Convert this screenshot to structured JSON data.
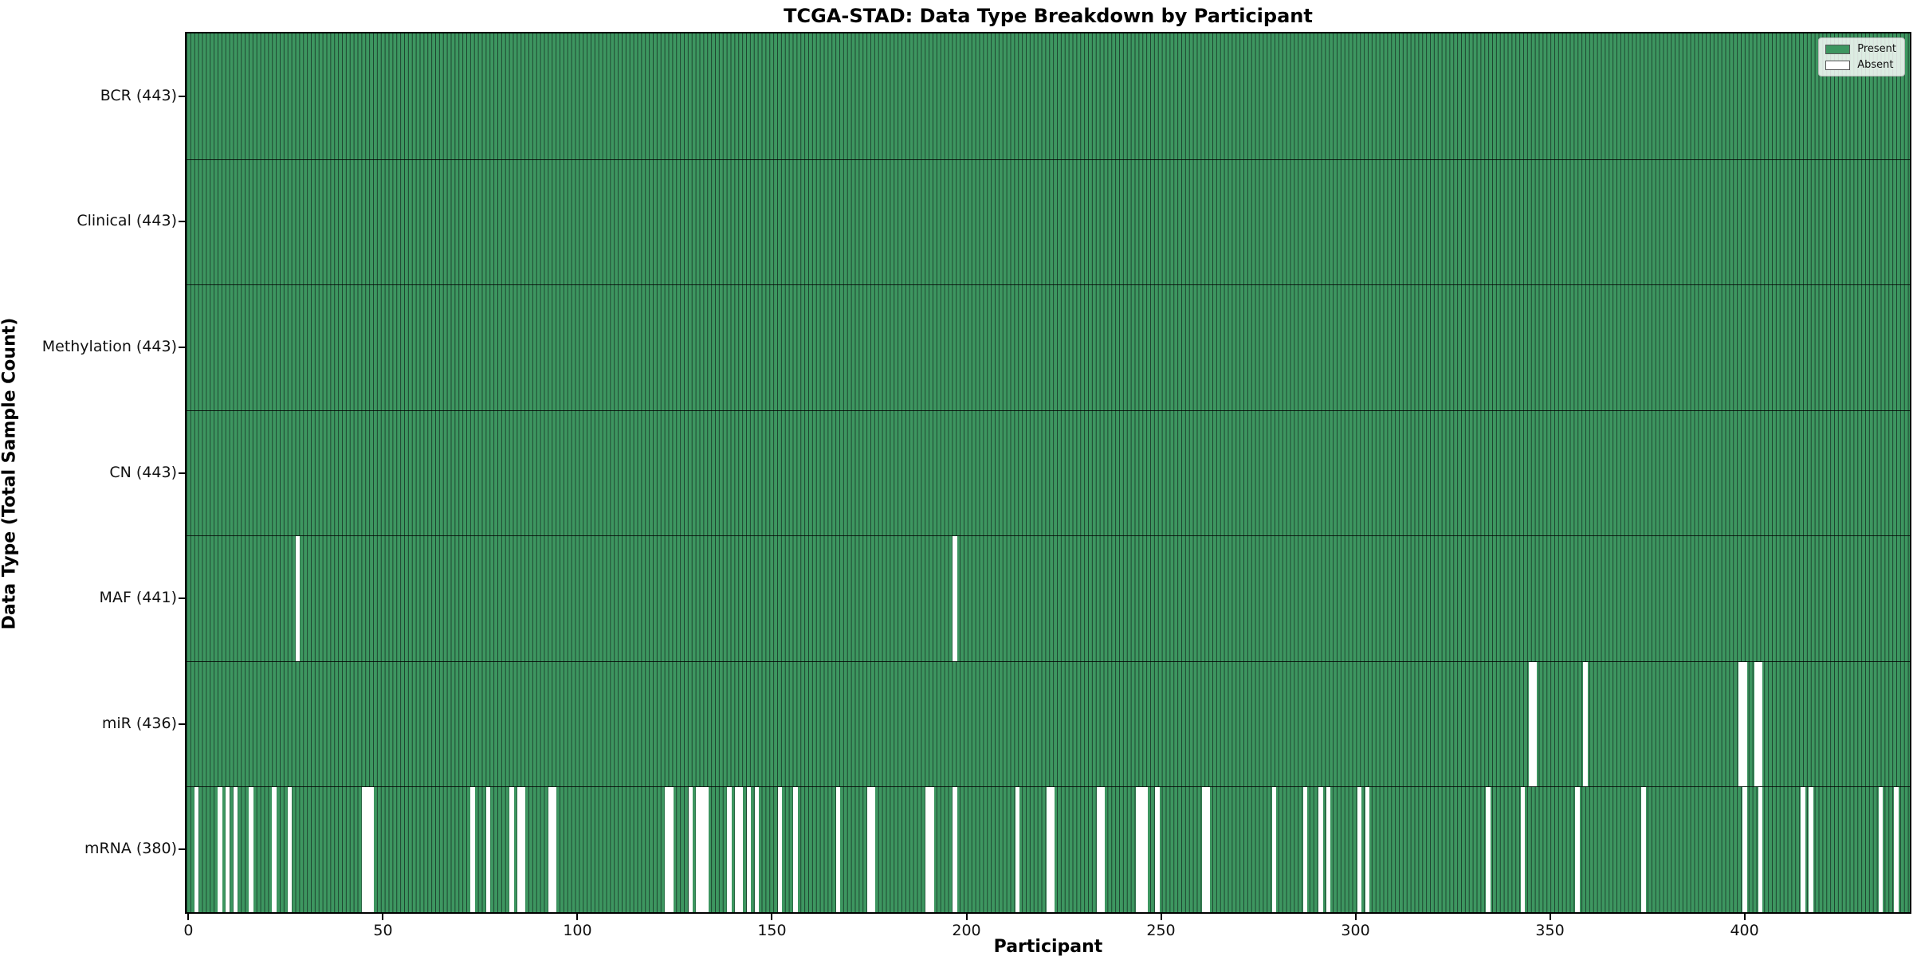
{
  "chart_data": {
    "type": "heatmap",
    "title": "TCGA-STAD: Data Type Breakdown by Participant",
    "xlabel": "Participant",
    "ylabel": "Data Type (Total Sample Count)",
    "n_participants": 443,
    "x_ticks": [
      0,
      50,
      100,
      150,
      200,
      250,
      300,
      350,
      400
    ],
    "grid": false,
    "legend": {
      "position": "upper right",
      "entries": [
        {
          "label": "Present",
          "color": "#3d9660"
        },
        {
          "label": "Absent",
          "color": "#ffffff"
        }
      ]
    },
    "colors": {
      "present_fill": "#3d9660",
      "cell_edge": "#1e4530",
      "absent_fill": "#ffffff",
      "spine": "#000000"
    },
    "rows": [
      {
        "name": "BCR",
        "label": "BCR (443)",
        "total": 443,
        "absent": []
      },
      {
        "name": "Clinical",
        "label": "Clinical (443)",
        "total": 443,
        "absent": []
      },
      {
        "name": "Methylation",
        "label": "Methylation (443)",
        "total": 443,
        "absent": []
      },
      {
        "name": "CN",
        "label": "CN (443)",
        "total": 443,
        "absent": []
      },
      {
        "name": "MAF",
        "label": "MAF (441)",
        "total": 441,
        "absent": [
          28,
          197
        ]
      },
      {
        "name": "miR",
        "label": "miR (436)",
        "total": 436,
        "absent": [
          345,
          346,
          359,
          399,
          400,
          403,
          404
        ]
      },
      {
        "name": "mRNA",
        "label": "mRNA (380)",
        "total": 380,
        "absent": [
          2,
          8,
          10,
          12,
          16,
          22,
          26,
          45,
          46,
          47,
          73,
          77,
          83,
          85,
          86,
          93,
          94,
          123,
          124,
          129,
          131,
          132,
          133,
          139,
          141,
          142,
          144,
          146,
          152,
          156,
          167,
          175,
          176,
          190,
          191,
          197,
          213,
          221,
          222,
          234,
          235,
          244,
          245,
          246,
          249,
          261,
          262,
          279,
          287,
          291,
          293,
          301,
          303,
          334,
          343,
          357,
          374,
          400,
          404,
          415,
          417,
          435,
          439
        ]
      }
    ]
  }
}
